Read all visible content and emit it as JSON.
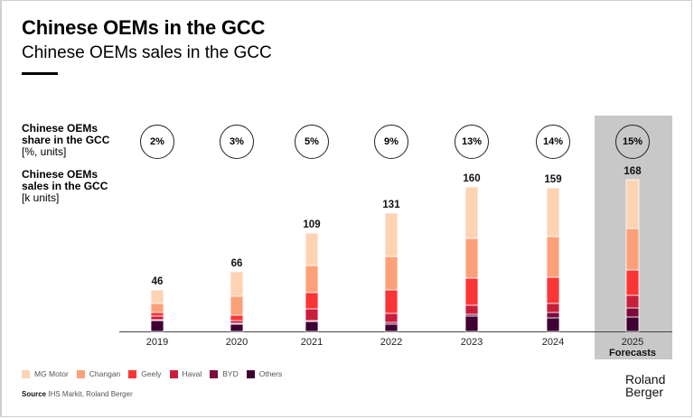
{
  "header": {
    "title": "Chinese OEMs in the GCC",
    "subtitle": "Chinese OEMs sales in the GCC"
  },
  "row_labels": {
    "share": {
      "line1": "Chinese OEMs",
      "line2": "share in the GCC",
      "unit": "[%, units]"
    },
    "sales": {
      "line1": "Chinese OEMs",
      "line2": "sales in the GCC",
      "unit": "[k units]"
    }
  },
  "colors": {
    "MG Motor": "#fdd3b4",
    "Changan": "#fca07a",
    "Geely": "#fb3535",
    "Haval": "#c81e3c",
    "BYD": "#7d0a3c",
    "Others": "#3f0034",
    "forecast_bg": "#c8c8c8"
  },
  "chart_data": {
    "type": "bar",
    "stacked": true,
    "title": "Chinese OEMs sales in the GCC",
    "ylabel": "Chinese OEMs sales in the GCC [k units]",
    "xlabel": "",
    "categories": [
      "2019",
      "2020",
      "2021",
      "2022",
      "2023",
      "2024",
      "2025"
    ],
    "category_notes": {
      "2025": "Forecasts"
    },
    "totals": [
      46,
      66,
      109,
      131,
      160,
      159,
      168
    ],
    "share_percent": [
      "2%",
      "3%",
      "5%",
      "9%",
      "13%",
      "14%",
      "15%"
    ],
    "ylim": [
      0,
      170
    ],
    "grid": false,
    "legend_position": "bottom-left",
    "series": [
      {
        "name": "Others",
        "values": [
          12,
          8,
          11,
          8,
          17,
          15,
          16
        ]
      },
      {
        "name": "BYD",
        "values": [
          1,
          1,
          1,
          2,
          2,
          6,
          10
        ]
      },
      {
        "name": "Haval",
        "values": [
          4,
          3,
          13,
          10,
          10,
          10,
          14
        ]
      },
      {
        "name": "Geely",
        "values": [
          4,
          6,
          18,
          26,
          30,
          29,
          28
        ]
      },
      {
        "name": "Changan",
        "values": [
          10,
          21,
          30,
          37,
          44,
          45,
          46
        ]
      },
      {
        "name": "MG Motor",
        "values": [
          15,
          27,
          36,
          48,
          57,
          54,
          54
        ]
      }
    ]
  },
  "legend": [
    "MG Motor",
    "Changan",
    "Geely",
    "Haval",
    "BYD",
    "Others"
  ],
  "footer": {
    "source_label": "Source",
    "source_text": "IHS Markit, Roland Berger",
    "logo_line1": "Roland",
    "logo_line2": "Berger"
  }
}
